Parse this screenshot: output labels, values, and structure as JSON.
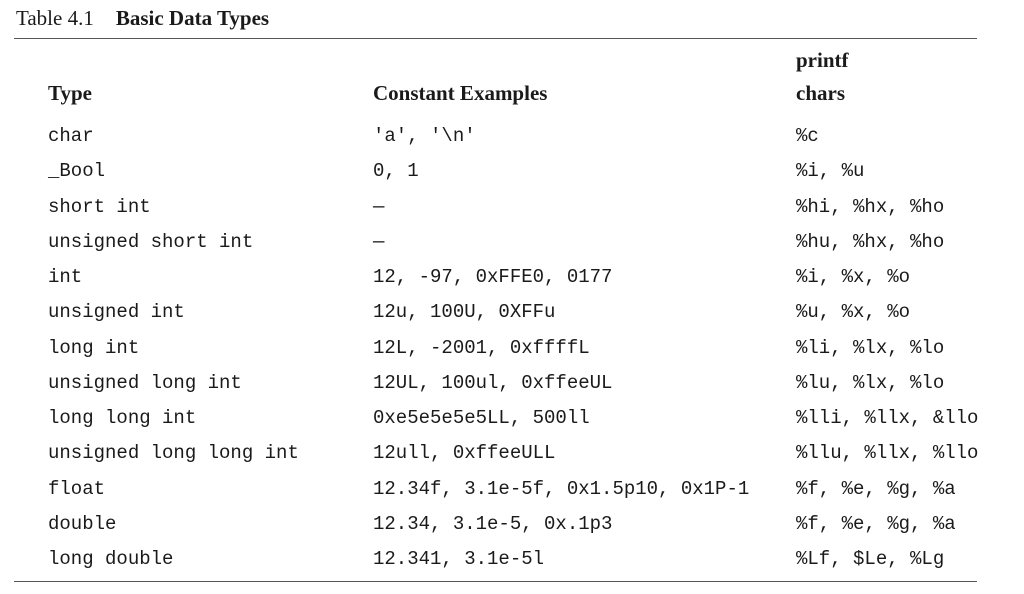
{
  "caption": {
    "number": "Table 4.1",
    "title": "Basic Data Types"
  },
  "headers": {
    "type": "Type",
    "constants": "Constant Examples",
    "printf": "printf\nchars"
  },
  "rows": [
    {
      "type": "char",
      "constants": "'a', '\\n'",
      "printf": "%c"
    },
    {
      "type": "_Bool",
      "constants": "0, 1",
      "printf": "%i, %u"
    },
    {
      "type": "short int",
      "constants": "—",
      "printf": "%hi, %hx, %ho"
    },
    {
      "type": "unsigned short int",
      "constants": "—",
      "printf": "%hu, %hx, %ho"
    },
    {
      "type": "int",
      "constants": "12, -97, 0xFFE0, 0177",
      "printf": "%i, %x, %o"
    },
    {
      "type": "unsigned int",
      "constants": "12u, 100U, 0XFFu",
      "printf": "%u, %x, %o"
    },
    {
      "type": "long int",
      "constants": "12L, -2001, 0xffffL",
      "printf": "%li, %lx, %lo"
    },
    {
      "type": "unsigned long int",
      "constants": "12UL, 100ul, 0xffeeUL",
      "printf": "%lu, %lx, %lo"
    },
    {
      "type": "long long int",
      "constants": "0xe5e5e5e5LL, 500ll",
      "printf": "%lli, %llx, &llo"
    },
    {
      "type": "unsigned long long int",
      "constants": "12ull, 0xffeeULL",
      "printf": "%llu, %llx, %llo"
    },
    {
      "type": "float",
      "constants": "12.34f, 3.1e-5f, 0x1.5p10, 0x1P-1",
      "printf": "%f, %e, %g, %a"
    },
    {
      "type": "double",
      "constants": "12.34, 3.1e-5, 0x.1p3",
      "printf": "%f, %e, %g, %a"
    },
    {
      "type": "long double",
      "constants": "12.341, 3.1e-5l",
      "printf": "%Lf, $Le, %Lg"
    }
  ]
}
